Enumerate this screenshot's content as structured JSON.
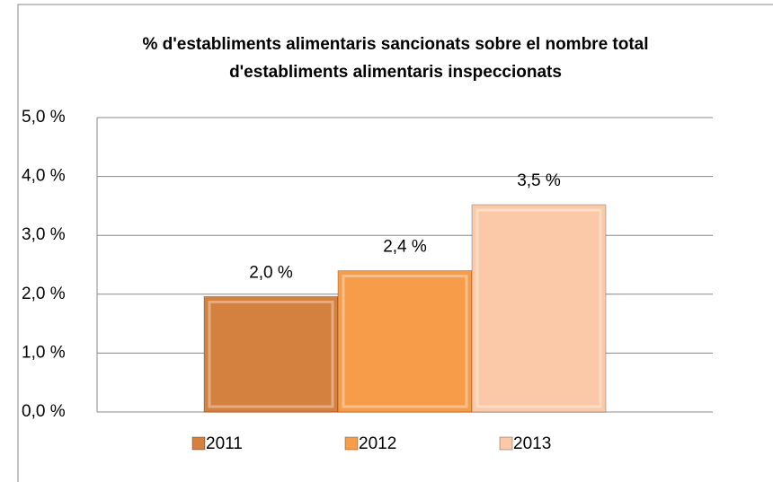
{
  "chart_data": {
    "type": "bar",
    "title": "% d'establiments alimentaris sancionats sobre el nombre total d'establiments alimentaris inspeccionats",
    "categories": [
      null
    ],
    "series": [
      {
        "name": "2011",
        "color": "#d4803f",
        "values": [
          1.96
        ],
        "value_labels": [
          "2,0 %"
        ]
      },
      {
        "name": "2012",
        "color": "#f79d4a",
        "values": [
          2.4
        ],
        "value_labels": [
          "2,4 %"
        ]
      },
      {
        "name": "2013",
        "color": "#fcc9a8",
        "values": [
          3.52
        ],
        "value_labels": [
          "3,5 %"
        ]
      }
    ],
    "ylim": [
      0,
      5
    ],
    "yticks": [
      {
        "value": 0,
        "label": "0,0 %"
      },
      {
        "value": 1,
        "label": "1,0 %"
      },
      {
        "value": 2,
        "label": "2,0 %"
      },
      {
        "value": 3,
        "label": "3,0 %"
      },
      {
        "value": 4,
        "label": "4,0 %"
      },
      {
        "value": 5,
        "label": "5,0 %"
      }
    ],
    "grid": true,
    "legend": "bottom"
  }
}
